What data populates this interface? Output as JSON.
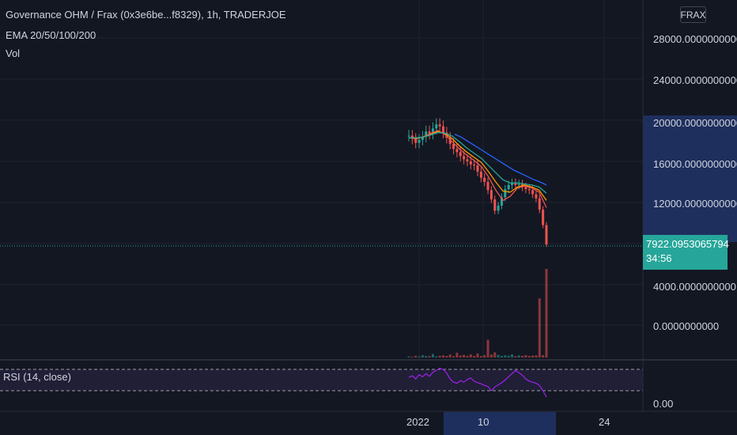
{
  "header": {
    "symbol_line": "Governance OHM / Frax (0x3e6be...f8329), 1h, TRADERJOE",
    "ema_label": "EMA 20/50/100/200",
    "vol_label": "Vol",
    "quote_currency": "FRAX"
  },
  "price_axis": {
    "ticks": [
      "28000.0000000000",
      "24000.0000000000",
      "20000.0000000000",
      "16000.0000000000",
      "12000.0000000000",
      "4000.0000000000",
      "0.0000000000"
    ],
    "current_price": "7922.0953065794",
    "countdown": "34:56"
  },
  "rsi_panel": {
    "label": "RSI (14, close)",
    "axis_tick": "0.00"
  },
  "time_axis": {
    "ticks": [
      "2022",
      "10",
      "24"
    ]
  },
  "colors": {
    "background": "#131722",
    "up": "#26a69a",
    "down": "#ef5350",
    "ema20": "#ef5350",
    "ema50": "#ff9800",
    "ema100": "#26a69a",
    "ema200": "#2962ff",
    "rsi": "#a020f0",
    "selection": "#1e2f5e"
  },
  "chart_data": {
    "type": "line",
    "subtype": "candlestick-with-ema-volume-rsi",
    "price_ylim": [
      0,
      30000
    ],
    "close_approx": [
      18500,
      18200,
      17800,
      18100,
      18400,
      18900,
      18700,
      19200,
      19600,
      19400,
      18800,
      18300,
      17700,
      17200,
      16900,
      16500,
      16200,
      16000,
      15700,
      15600,
      15000,
      14400,
      14000,
      13200,
      12300,
      11200,
      11700,
      12500,
      13300,
      13700,
      13900,
      13700,
      13800,
      13500,
      13300,
      13200,
      12800,
      12400,
      11300,
      9800,
      7922
    ],
    "ema_series": [
      {
        "name": "EMA 20",
        "color": "#ef5350",
        "values": [
          18300,
          18200,
          18400,
          18700,
          19000,
          18600,
          17900,
          17200,
          16600,
          16100,
          15500,
          14500,
          13200,
          12200,
          12600,
          13400,
          13600,
          13400,
          13000,
          11500
        ]
      },
      {
        "name": "EMA 50",
        "color": "#ff9800",
        "values": [
          18300,
          18250,
          18350,
          18600,
          18900,
          18700,
          18200,
          17500,
          16900,
          16400,
          15900,
          15000,
          14000,
          13100,
          13000,
          13500,
          13700,
          13500,
          13200,
          12200
        ]
      },
      {
        "name": "EMA 100",
        "color": "#26a69a",
        "values": [
          18300,
          18300,
          18350,
          18550,
          18800,
          18750,
          18450,
          17900,
          17300,
          16800,
          16300,
          15600,
          14900,
          14200,
          13900,
          13900,
          13800,
          13700,
          13500,
          12900
        ]
      },
      {
        "name": "EMA 200",
        "color": "#2962ff",
        "values": [
          18650,
          18350,
          17950,
          17550,
          17150,
          16750,
          16350,
          15950,
          15550,
          15150,
          14850,
          14550,
          14250,
          14000,
          13700
        ]
      }
    ],
    "volume_approx": [
      60,
      40,
      90,
      50,
      120,
      80,
      70,
      180,
      60,
      90,
      110,
      80,
      150,
      70,
      240,
      100,
      130,
      90,
      160,
      80,
      200,
      70,
      120,
      900,
      150,
      260,
      130,
      80,
      110,
      90,
      160,
      70,
      110,
      90,
      120,
      80,
      100,
      110,
      3000,
      120,
      4500
    ],
    "rsi_approx": [
      55,
      58,
      52,
      60,
      56,
      62,
      57,
      65,
      68,
      72,
      70,
      63,
      52,
      46,
      44,
      49,
      46,
      51,
      54,
      48,
      45,
      43,
      40,
      38,
      30,
      37,
      41,
      45,
      50,
      56,
      62,
      68,
      64,
      59,
      52,
      48,
      46,
      44,
      40,
      30,
      18
    ],
    "rsi_levels": [
      70,
      30
    ]
  }
}
